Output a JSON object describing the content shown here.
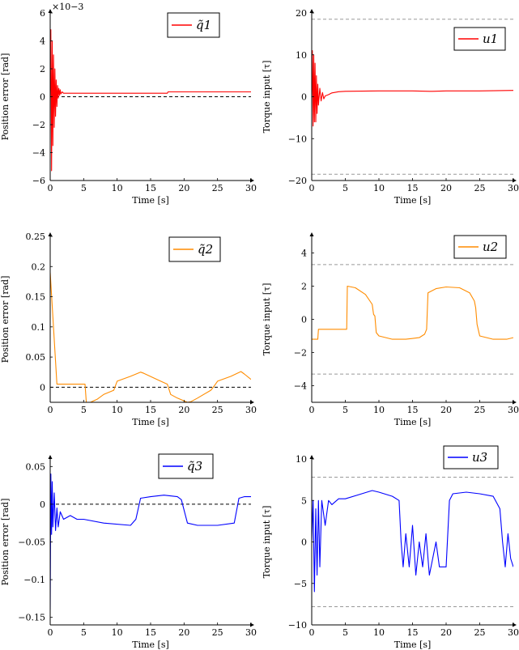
{
  "chart_data": [
    {
      "type": "line",
      "panel": "q1",
      "xlabel": "Time [s]",
      "ylabel": "Position error [rad]",
      "legend": "q̃1",
      "legend_pos": "top-right",
      "color": "#ff0000",
      "xlim": [
        0,
        30
      ],
      "ylim": [
        -6,
        6
      ],
      "xticks": [
        0,
        5,
        10,
        15,
        20,
        25,
        30
      ],
      "yticks": [
        -6,
        -4,
        -2,
        0,
        2,
        4,
        6
      ],
      "scale_note": "×10−3",
      "reference_lines": [
        {
          "y": 0,
          "style": "dashed",
          "color": "#000000"
        }
      ],
      "series": [
        {
          "x": [
            0,
            0.1,
            0.2,
            0.3,
            0.4,
            0.5,
            0.6,
            0.7,
            0.8,
            0.9,
            1.0,
            1.1,
            1.2,
            1.3,
            1.4,
            1.5,
            1.6,
            1.8,
            2.0,
            3,
            5,
            10,
            15,
            17.5,
            17.6,
            20,
            25,
            30
          ],
          "y": [
            0,
            4.8,
            -5.3,
            4.0,
            -3.5,
            3.0,
            -2.2,
            2.0,
            -1.4,
            1.2,
            -0.7,
            0.8,
            -0.1,
            0.6,
            0.1,
            0.5,
            0.2,
            0.35,
            0.25,
            0.25,
            0.25,
            0.25,
            0.25,
            0.25,
            0.35,
            0.35,
            0.35,
            0.35
          ]
        }
      ]
    },
    {
      "type": "line",
      "panel": "u1",
      "xlabel": "Time [s]",
      "ylabel": "Torque input [τ]",
      "legend": "u1",
      "legend_pos": "top-right",
      "color": "#ff0000",
      "xlim": [
        0,
        30
      ],
      "ylim": [
        -20,
        20
      ],
      "xticks": [
        0,
        5,
        10,
        15,
        20,
        25,
        30
      ],
      "yticks": [
        -20,
        -10,
        0,
        10,
        20
      ],
      "reference_lines": [
        {
          "y": 18.5,
          "style": "dashed",
          "color": "#999999"
        },
        {
          "y": -18.5,
          "style": "dashed",
          "color": "#999999"
        }
      ],
      "series": [
        {
          "x": [
            0,
            0.1,
            0.2,
            0.3,
            0.4,
            0.5,
            0.6,
            0.7,
            0.8,
            0.9,
            1.0,
            1.2,
            1.4,
            1.6,
            1.8,
            2.0,
            2.5,
            3,
            4,
            5,
            10,
            15,
            17.5,
            18,
            20,
            25,
            30
          ],
          "y": [
            0,
            11,
            -7,
            10,
            -6,
            8,
            -6,
            5,
            -4,
            3,
            -2,
            2,
            -1,
            1,
            -0.5,
            0.2,
            0.5,
            0.9,
            1.2,
            1.3,
            1.4,
            1.4,
            1.3,
            1.3,
            1.4,
            1.4,
            1.5
          ]
        }
      ]
    },
    {
      "type": "line",
      "panel": "q2",
      "xlabel": "Time [s]",
      "ylabel": "Position error [rad]",
      "legend": "q̃2",
      "legend_pos": "top-right",
      "color": "#ff8c00",
      "xlim": [
        0,
        30
      ],
      "ylim": [
        -0.025,
        0.25
      ],
      "xticks": [
        0,
        5,
        10,
        15,
        20,
        25,
        30
      ],
      "yticks": [
        0,
        0.05,
        0.1,
        0.15,
        0.2,
        0.25
      ],
      "reference_lines": [
        {
          "y": 0,
          "style": "dashed",
          "color": "#000000"
        }
      ],
      "series": [
        {
          "x": [
            0,
            1,
            1.1,
            5.2,
            5.4,
            6,
            7,
            8,
            9.5,
            10,
            12,
            13.5,
            14,
            16.5,
            17.5,
            18,
            19,
            20.5,
            21,
            22,
            24,
            24.5,
            25,
            27,
            28.5,
            29,
            30
          ],
          "y": [
            0.19,
            0.005,
            0.005,
            0.005,
            -0.025,
            -0.025,
            -0.02,
            -0.012,
            -0.005,
            0.01,
            0.018,
            0.025,
            0.023,
            0.01,
            0.005,
            -0.012,
            -0.018,
            -0.025,
            -0.024,
            -0.018,
            -0.005,
            0.002,
            0.01,
            0.018,
            0.026,
            0.022,
            0.013
          ]
        }
      ]
    },
    {
      "type": "line",
      "panel": "u2",
      "xlabel": "Time [s]",
      "ylabel": "Torque input [τ]",
      "legend": "u2",
      "legend_pos": "top-right",
      "color": "#ff8c00",
      "xlim": [
        0,
        30
      ],
      "ylim": [
        -5,
        5
      ],
      "xticks": [
        0,
        5,
        10,
        15,
        20,
        25,
        30
      ],
      "yticks": [
        -4,
        -2,
        0,
        2,
        4
      ],
      "reference_lines": [
        {
          "y": 3.3,
          "style": "dashed",
          "color": "#999999"
        },
        {
          "y": -3.3,
          "style": "dashed",
          "color": "#999999"
        }
      ],
      "series": [
        {
          "x": [
            0,
            0.9,
            1.0,
            1.1,
            5.2,
            5.3,
            6.5,
            8,
            9,
            9.2,
            9.4,
            9.6,
            10,
            12,
            14,
            16,
            16.8,
            17.1,
            17.3,
            18.5,
            20,
            22,
            23.5,
            24.2,
            24.4,
            24.6,
            25,
            27,
            29,
            30
          ],
          "y": [
            -1.2,
            -1.2,
            -0.6,
            -0.6,
            -0.6,
            2.0,
            1.9,
            1.5,
            0.9,
            0.3,
            0.2,
            -0.8,
            -1.0,
            -1.2,
            -1.2,
            -1.1,
            -0.9,
            -0.6,
            1.6,
            1.85,
            1.95,
            1.9,
            1.6,
            1.1,
            0.7,
            -0.3,
            -1.0,
            -1.2,
            -1.2,
            -1.1
          ]
        }
      ]
    },
    {
      "type": "line",
      "panel": "q3",
      "xlabel": "Time [s]",
      "ylabel": "Position error [rad]",
      "legend": "q̃3",
      "legend_pos": "top-right",
      "color": "#0000ff",
      "xlim": [
        0,
        30
      ],
      "ylim": [
        -0.16,
        0.06
      ],
      "xticks": [
        0,
        5,
        10,
        15,
        20,
        25,
        30
      ],
      "yticks": [
        -0.15,
        -0.1,
        -0.05,
        0,
        0.05
      ],
      "reference_lines": [
        {
          "y": 0,
          "style": "dashed",
          "color": "#000000"
        }
      ],
      "series": [
        {
          "x": [
            0,
            0.1,
            0.2,
            0.3,
            0.4,
            0.6,
            0.8,
            1.0,
            1.2,
            1.5,
            2,
            3,
            4,
            5,
            8,
            12,
            12.8,
            13.5,
            15,
            17,
            19,
            19.6,
            20.5,
            22,
            25,
            27.5,
            28.2,
            29,
            30
          ],
          "y": [
            -0.14,
            0.04,
            -0.04,
            0.03,
            -0.03,
            0.015,
            -0.035,
            -0.005,
            -0.03,
            -0.01,
            -0.02,
            -0.015,
            -0.02,
            -0.02,
            -0.025,
            -0.028,
            -0.02,
            0.008,
            0.01,
            0.012,
            0.01,
            0.006,
            -0.025,
            -0.028,
            -0.028,
            -0.025,
            0.008,
            0.01,
            0.01
          ]
        }
      ]
    },
    {
      "type": "line",
      "panel": "u3",
      "xlabel": "Time [s]",
      "ylabel": "Torque input [τ]",
      "legend": "u3",
      "legend_pos": "top-right",
      "color": "#0000ff",
      "xlim": [
        0,
        30
      ],
      "ylim": [
        -10,
        10
      ],
      "xticks": [
        0,
        5,
        10,
        15,
        20,
        25,
        30
      ],
      "yticks": [
        -10,
        -5,
        0,
        5,
        10
      ],
      "reference_lines": [
        {
          "y": 7.8,
          "style": "dashed",
          "color": "#999999"
        },
        {
          "y": -7.8,
          "style": "dashed",
          "color": "#999999"
        }
      ],
      "series": [
        {
          "x": [
            0,
            0.2,
            0.4,
            0.6,
            0.8,
            1.0,
            1.2,
            1.5,
            2,
            2.5,
            3,
            4,
            5,
            7,
            9,
            10,
            12,
            13,
            13.3,
            13.6,
            14,
            14.5,
            15,
            15.5,
            16,
            16.5,
            17,
            17.5,
            18,
            18.5,
            19,
            19.5,
            20,
            20.5,
            21,
            23,
            25,
            27,
            28,
            28.4,
            28.8,
            29.2,
            29.6,
            30
          ],
          "y": [
            0,
            5,
            -6,
            4,
            -4,
            5,
            -3,
            5,
            2,
            5,
            4.5,
            5.2,
            5.2,
            5.7,
            6.2,
            6,
            5.5,
            5,
            0,
            -3,
            1,
            -3,
            2,
            -4,
            0,
            -3,
            1,
            -4,
            -2,
            0,
            -3,
            -3,
            -3,
            5,
            5.8,
            6,
            5.8,
            5.5,
            4,
            0,
            -3,
            1,
            -2,
            -3
          ]
        }
      ]
    }
  ]
}
